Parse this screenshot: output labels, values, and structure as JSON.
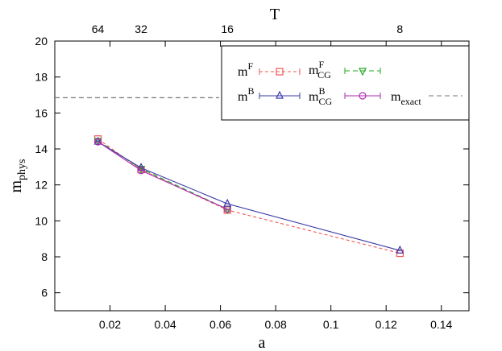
{
  "chart_data": {
    "type": "line",
    "xlabel": "a",
    "ylabel_main": "m",
    "ylabel_sub": "phys",
    "x2label": "T",
    "xlim": [
      0.0,
      0.15
    ],
    "ylim": [
      5,
      20
    ],
    "xticks": [
      {
        "value": 0.02,
        "label": "0.02"
      },
      {
        "value": 0.04,
        "label": "0.04"
      },
      {
        "value": 0.06,
        "label": "0.06"
      },
      {
        "value": 0.08,
        "label": "0.08"
      },
      {
        "value": 0.1,
        "label": "0.1"
      },
      {
        "value": 0.12,
        "label": "0.12"
      },
      {
        "value": 0.14,
        "label": "0.14"
      }
    ],
    "yticks": [
      {
        "value": 6,
        "label": "6"
      },
      {
        "value": 8,
        "label": "8"
      },
      {
        "value": 10,
        "label": "10"
      },
      {
        "value": 12,
        "label": "12"
      },
      {
        "value": 14,
        "label": "14"
      },
      {
        "value": 16,
        "label": "16"
      },
      {
        "value": 18,
        "label": "18"
      },
      {
        "value": 20,
        "label": "20"
      }
    ],
    "x2ticks": [
      {
        "value": 0.015625,
        "label": "64"
      },
      {
        "value": 0.03125,
        "label": "32"
      },
      {
        "value": 0.0625,
        "label": "16"
      },
      {
        "value": 0.125,
        "label": "8"
      }
    ],
    "legend_position": "top-right",
    "series": [
      {
        "name": "F",
        "name_main": "m",
        "name_sup": "F",
        "name_sub": "",
        "color": "#f25757",
        "dash": "4,3",
        "marker": "square",
        "x": [
          0.015625,
          0.03125,
          0.0625,
          0.125
        ],
        "y": [
          14.55,
          12.85,
          10.6,
          8.2
        ]
      },
      {
        "name": "F CG",
        "name_main": "m",
        "name_sup": "F",
        "name_sub": "CG",
        "color": "#22aa22",
        "dash": "6,4",
        "marker": "triangle-down",
        "x": [
          0.015625,
          0.03125,
          0.0625
        ],
        "y": [
          14.45,
          12.9,
          10.65
        ]
      },
      {
        "name": "B",
        "name_main": "m",
        "name_sup": "B",
        "name_sub": "",
        "color": "#3a3aa8",
        "dash": "",
        "marker": "triangle-up",
        "x": [
          0.015625,
          0.03125,
          0.0625,
          0.125
        ],
        "y": [
          14.4,
          12.95,
          10.95,
          8.35
        ]
      },
      {
        "name": "B CG",
        "name_main": "m",
        "name_sup": "B",
        "name_sub": "CG",
        "color": "#b02ab0",
        "dash": "",
        "marker": "circle",
        "x": [
          0.015625,
          0.03125,
          0.0625
        ],
        "y": [
          14.4,
          12.8,
          10.65
        ]
      }
    ],
    "reference": {
      "name": "exact",
      "name_main": "m",
      "name_sup": "",
      "name_sub": "exact",
      "color": "#777777",
      "dash": "6,4",
      "y": 16.85
    }
  }
}
